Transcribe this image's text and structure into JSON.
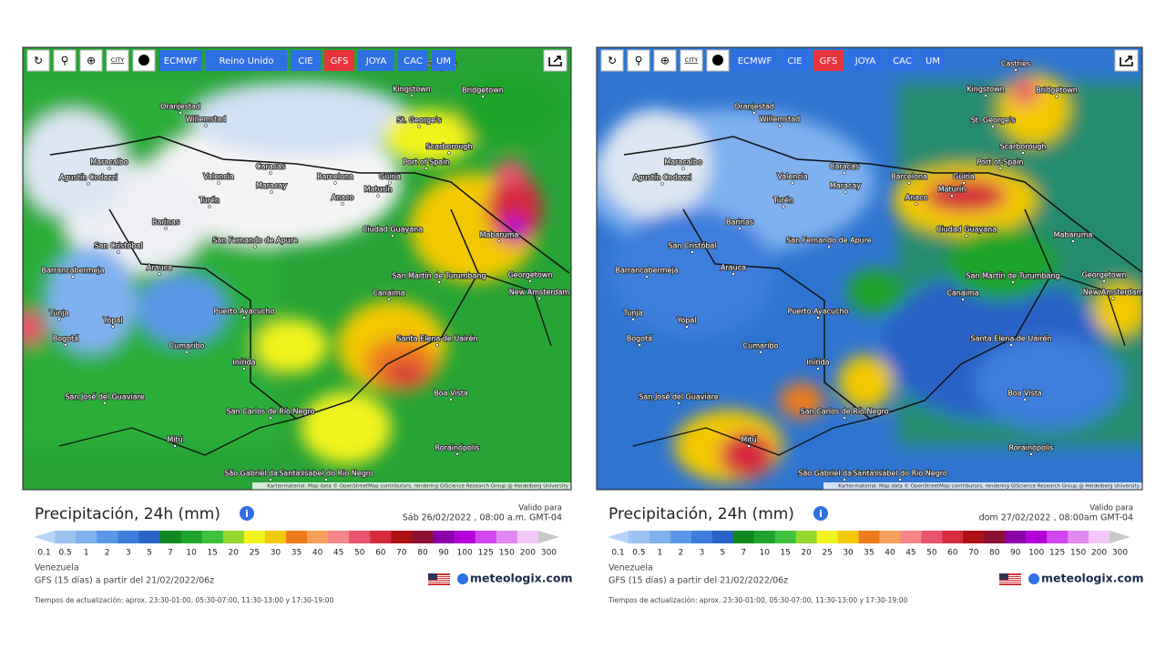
{
  "panels": [
    {
      "toolbar": {
        "city_icon": "CITY",
        "buttons": [
          "ECMWF",
          "Reino Unido",
          "CIE",
          "GFS",
          "JOYA",
          "CAC",
          "UM"
        ],
        "active": "GFS"
      },
      "cities": [
        "Castries",
        "Kingstown",
        "Bridgetown",
        "Oranjestad",
        "Willemstad",
        "St. George's",
        "Scarborough",
        "Maracaibo",
        "Port of Spain",
        "Caracas",
        "Agustín Codazzi",
        "Valencia",
        "Barcelona",
        "Güiria",
        "Maracay",
        "Maturín",
        "Anaco",
        "Turén",
        "Barinas",
        "Ciudad Guayana",
        "Mabaruma",
        "San Fernando de Apure",
        "San Cristóbal",
        "Arauca",
        "Georgetown",
        "Barrancabermeja",
        "San Martín de Turumbang",
        "New Amsterdam",
        "Canaima",
        "Puerto Ayacucho",
        "Tunja",
        "Yopal",
        "Bogotá",
        "Santa Elena de Uairén",
        "Cumaribo",
        "Inírida",
        "Boa Vista",
        "San José del Guaviare",
        "San Carlos de Río Negro",
        "Mitú",
        "Rorainópolis",
        "São Gabriel da Cachoeira",
        "Santa Isabel do Rio Negro"
      ],
      "attribution": "Kartenmaterial: Map data © OpenStreetMap contributors, rendering GIScience Research Group @ Heidelberg University",
      "title": "Precipitación, 24h (mm)",
      "valid_label": "Valido para",
      "valid_time": "Sáb 26/02/2022 , 08:00 a.m. GMT-04",
      "location": "Venezuela",
      "model_run": "GFS (15 días) a partir del 21/02/2022/06z",
      "logo": "meteologix.com",
      "update_times": "Tiempos de actualización: aprox. 23:30-01:00, 05:30-07:00, 11:30-13:00 y 17:30-19:00"
    },
    {
      "toolbar": {
        "city_icon": "CITY",
        "buttons": [
          "ECMWF",
          "CIE",
          "GFS",
          "JOYA",
          "CAC",
          "UM"
        ],
        "active": "GFS"
      },
      "cities": [
        "Castries",
        "Kingstown",
        "Bridgetown",
        "Oranjestad",
        "Willemstad",
        "St. George's",
        "Scarborough",
        "Maracaibo",
        "Port of Spain",
        "Caracas",
        "Agustín Codazzi",
        "Valencia",
        "Barcelona",
        "Güiria",
        "Maracay",
        "Maturín",
        "Anaco",
        "Turén",
        "Barinas",
        "Ciudad Guayana",
        "Mabaruma",
        "San Fernando de Apure",
        "San Cristóbal",
        "Arauca",
        "Georgetown",
        "Barrancabermeja",
        "San Martín de Turumbang",
        "New Amsterdam",
        "Canaima",
        "Puerto Ayacucho",
        "Tunja",
        "Yopal",
        "Bogotá",
        "Santa Elena de Uairén",
        "Cumaribo",
        "Inírida",
        "Boa Vista",
        "San José del Guaviare",
        "San Carlos de Río Negro",
        "Mitú",
        "Rorainópolis",
        "São Gabriel da Cachoeira",
        "Santa Isabel do Rio Negro"
      ],
      "attribution": "Kartenmaterial: Map data © OpenStreetMap contributors, rendering GIScience Research Group @ Heidelberg University",
      "title": "Precipitación, 24h (mm)",
      "valid_label": "Valido para",
      "valid_time": "dom 27/02/2022 , 08:00am GMT-04",
      "location": "Venezuela",
      "model_run": "GFS (15 días) a partir del 21/02/2022/06z",
      "logo": "meteologix.com",
      "update_times": "Tiempos de actualización: aprox. 23:30-01:00, 05:30-07:00, 11:30-13:00 y 17:30-19:00"
    }
  ],
  "legend": {
    "labels": [
      "0.1",
      "0.5",
      "1",
      "2",
      "3",
      "5",
      "7",
      "10",
      "15",
      "20",
      "25",
      "30",
      "35",
      "40",
      "45",
      "50",
      "60",
      "70",
      "80",
      "90",
      "100",
      "125",
      "150",
      "200",
      "300"
    ],
    "colors": [
      "#b4d4f7",
      "#9cc4f2",
      "#7eb1ee",
      "#5c98e8",
      "#3e7ddc",
      "#2b62c8",
      "#11891f",
      "#1ea32c",
      "#3fc03e",
      "#94d82e",
      "#f2f21e",
      "#f2c900",
      "#ee7b1b",
      "#f59f5c",
      "#f28585",
      "#e8546d",
      "#d62a3d",
      "#ad1111",
      "#8b1233",
      "#8a00a8",
      "#b300d8",
      "#d146f0",
      "#e288f2",
      "#f2c6f8",
      "#c8c8c8"
    ]
  }
}
